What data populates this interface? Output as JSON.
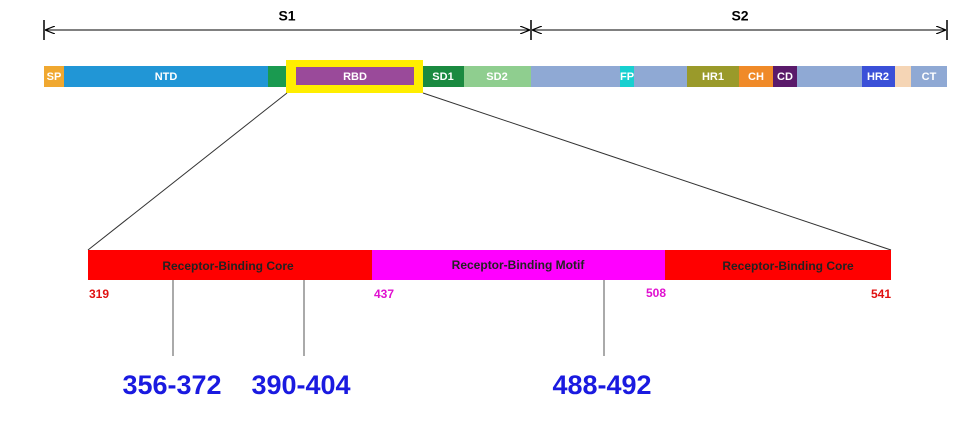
{
  "regions": {
    "s1": "S1",
    "s2": "S2"
  },
  "domains": [
    "SP",
    "NTD",
    "RBD",
    "SD1",
    "SD2",
    "FP",
    "HR1",
    "CH",
    "CD",
    "HR2",
    "CT"
  ],
  "rbd_segments": [
    "Receptor-Binding Core",
    "Receptor-Binding Motif",
    "Receptor-Binding Core"
  ],
  "positions": [
    319,
    437,
    508,
    541
  ],
  "epitopes": [
    "356-372",
    "390-404",
    "488-492"
  ]
}
